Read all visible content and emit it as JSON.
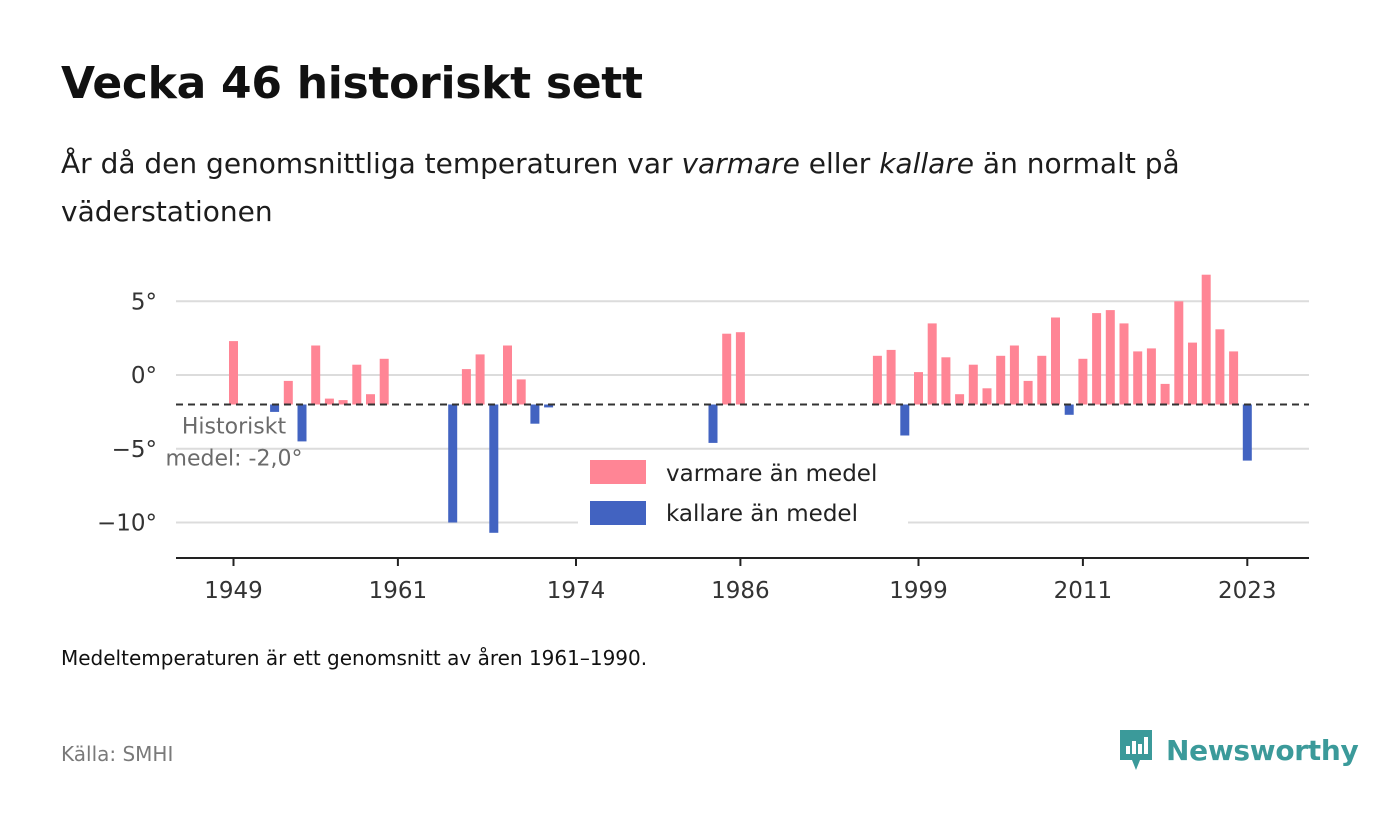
{
  "header": {
    "title": "Vecka 46 historiskt sett",
    "subtitle_part1": "År då den genomsnittliga temperaturen var ",
    "subtitle_em1": "varmare",
    "subtitle_part2": " eller ",
    "subtitle_em2": "kallare",
    "subtitle_part3": " än normalt på väderstationen"
  },
  "footer": {
    "note": "Medeltemperaturen är ett genomsnitt av åren 1961–1990.",
    "source": "Källa: SMHI",
    "brand": "Newsworthy"
  },
  "colors": {
    "warm": "#ff8595",
    "cold": "#4263c1",
    "brand": "#3b9a9a"
  },
  "icons": {
    "brand_logo": "newsworthy-logo-icon"
  },
  "chart_data": {
    "type": "bar",
    "title": "Vecka 46 historiskt sett",
    "baseline": -2.0,
    "baseline_label_line1": "Historiskt",
    "baseline_label_line2": "medel: -2,0°",
    "xlim": [
      1945,
      2027
    ],
    "ylim": [
      -12.5,
      7.5
    ],
    "xticks": [
      1949,
      1961,
      1974,
      1986,
      1999,
      2011,
      2023
    ],
    "xtick_labels": [
      "1949",
      "1961",
      "1974",
      "1986",
      "1999",
      "2011",
      "2023"
    ],
    "yticks": [
      5,
      0,
      -5,
      -10
    ],
    "ytick_labels": [
      "5°",
      "0°",
      "−5°",
      "−10°"
    ],
    "grid": true,
    "legend_position": "center",
    "series": [
      {
        "name": "varmare än medel",
        "color_key": "warm"
      },
      {
        "name": "kallare än medel",
        "color_key": "cold"
      }
    ],
    "x": [
      1949,
      1952,
      1953,
      1954,
      1955,
      1956,
      1957,
      1958,
      1959,
      1960,
      1965,
      1966,
      1967,
      1968,
      1969,
      1970,
      1971,
      1972,
      1984,
      1985,
      1986,
      1996,
      1997,
      1998,
      1999,
      2000,
      2001,
      2002,
      2003,
      2004,
      2005,
      2006,
      2007,
      2008,
      2009,
      2010,
      2011,
      2012,
      2013,
      2014,
      2015,
      2016,
      2017,
      2018,
      2019,
      2020,
      2021,
      2022,
      2023
    ],
    "values": [
      2.3,
      -2.5,
      -0.4,
      -4.5,
      2.0,
      -1.6,
      -1.7,
      0.7,
      -1.3,
      1.1,
      -10.0,
      0.4,
      1.4,
      -10.7,
      2.0,
      -0.3,
      -3.3,
      -2.2,
      -4.6,
      2.8,
      2.9,
      1.3,
      1.7,
      -4.1,
      0.2,
      3.5,
      1.2,
      -1.3,
      0.7,
      -0.9,
      1.3,
      2.0,
      -0.4,
      1.3,
      3.9,
      -2.7,
      1.1,
      4.2,
      4.4,
      3.5,
      1.6,
      1.8,
      -0.6,
      5.0,
      2.2,
      6.8,
      3.1,
      1.6,
      -5.8
    ]
  }
}
